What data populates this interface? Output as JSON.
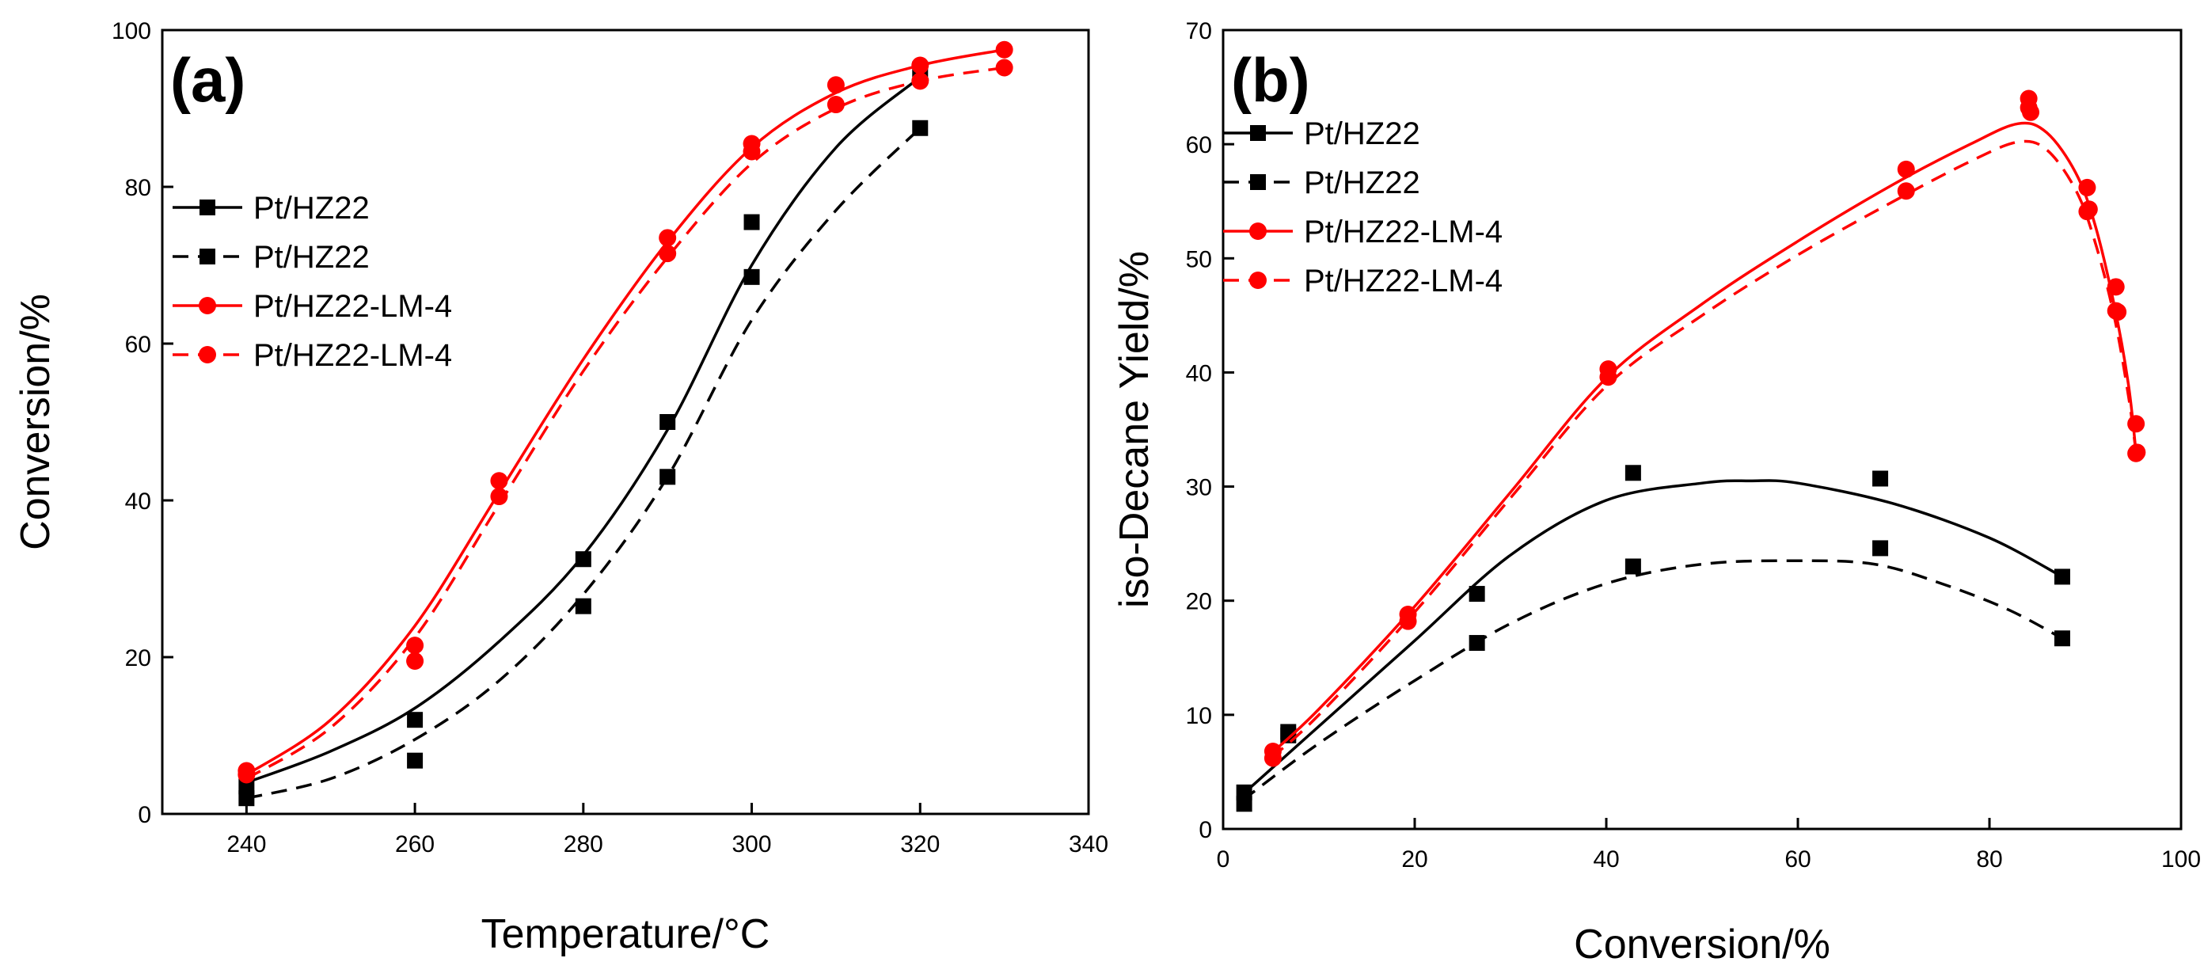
{
  "colors": {
    "black": "#000000",
    "red": "#ff0000"
  },
  "chart_data": [
    {
      "type": "line",
      "panel_label": "(a)",
      "xlabel": "Temperature/°C",
      "ylabel": "Conversion/%",
      "xlim": [
        230,
        340
      ],
      "ylim": [
        0,
        100
      ],
      "xticks": [
        240,
        260,
        280,
        300,
        320,
        340
      ],
      "yticks": [
        0,
        20,
        40,
        60,
        80,
        100
      ],
      "legend_position": "middle-left",
      "series": [
        {
          "name": "Pt/HZ22",
          "color": "#000000",
          "dash": "solid",
          "marker": "square",
          "x": [
            240,
            260,
            280,
            290,
            300,
            320
          ],
          "y": [
            3.5,
            12,
            32.5,
            50,
            75.5,
            95
          ],
          "fit": [
            [
              240,
              4
            ],
            [
              250,
              8
            ],
            [
              260,
              13.5
            ],
            [
              270,
              22
            ],
            [
              280,
              33
            ],
            [
              290,
              49
            ],
            [
              300,
              70
            ],
            [
              310,
              85
            ],
            [
              320,
              94
            ]
          ]
        },
        {
          "name": "Pt/HZ22",
          "color": "#000000",
          "dash": "dashed",
          "marker": "square",
          "x": [
            240,
            260,
            280,
            290,
            300,
            320
          ],
          "y": [
            2,
            6.8,
            26.5,
            43,
            68.5,
            87.5
          ],
          "fit": [
            [
              240,
              2
            ],
            [
              250,
              4.5
            ],
            [
              260,
              9.5
            ],
            [
              270,
              17
            ],
            [
              280,
              28
            ],
            [
              290,
              43
            ],
            [
              300,
              63
            ],
            [
              310,
              77
            ],
            [
              320,
              87.5
            ]
          ]
        },
        {
          "name": "Pt/HZ22-LM-4",
          "color": "#ff0000",
          "dash": "solid",
          "marker": "circle",
          "x": [
            240,
            260,
            270,
            290,
            300,
            310,
            320,
            330
          ],
          "y": [
            5.5,
            21.5,
            42.5,
            73.5,
            85.5,
            93,
            95.5,
            97.5
          ],
          "fit": [
            [
              240,
              5
            ],
            [
              250,
              12
            ],
            [
              260,
              24
            ],
            [
              270,
              41
            ],
            [
              280,
              58
            ],
            [
              290,
              73
            ],
            [
              300,
              85
            ],
            [
              310,
              92
            ],
            [
              320,
              95.5
            ],
            [
              330,
              97.5
            ]
          ]
        },
        {
          "name": "Pt/HZ22-LM-4",
          "color": "#ff0000",
          "dash": "dashed",
          "marker": "circle",
          "x": [
            240,
            260,
            270,
            290,
            300,
            310,
            320,
            330
          ],
          "y": [
            5,
            19.5,
            40.5,
            71.5,
            84.5,
            90.5,
            93.5,
            95.2
          ],
          "fit": [
            [
              240,
              4.5
            ],
            [
              250,
              11
            ],
            [
              260,
              22.5
            ],
            [
              270,
              39.5
            ],
            [
              280,
              56.5
            ],
            [
              290,
              71
            ],
            [
              300,
              83
            ],
            [
              310,
              90
            ],
            [
              320,
              93.5
            ],
            [
              330,
              95.2
            ]
          ]
        }
      ]
    },
    {
      "type": "line",
      "panel_label": "(b)",
      "xlabel": "Conversion/%",
      "ylabel": "iso-Decane Yield/%",
      "xlim": [
        0,
        100
      ],
      "ylim": [
        0,
        70
      ],
      "xticks": [
        0,
        20,
        40,
        60,
        80,
        100
      ],
      "yticks": [
        0,
        10,
        20,
        30,
        40,
        50,
        60,
        70
      ],
      "legend_position": "top-left",
      "series": [
        {
          "name": "Pt/HZ22",
          "color": "#000000",
          "dash": "solid",
          "marker": "square",
          "x": [
            2.2,
            6.8,
            26.5,
            42.8,
            68.6,
            87.6
          ],
          "y": [
            3.2,
            8.5,
            20.6,
            31.2,
            30.7,
            22.1
          ],
          "fit": [
            [
              2,
              3
            ],
            [
              10,
              9
            ],
            [
              20,
              16.5
            ],
            [
              30,
              24
            ],
            [
              40,
              28.8
            ],
            [
              50,
              30.3
            ],
            [
              55,
              30.5
            ],
            [
              60,
              30.3
            ],
            [
              70,
              28.5
            ],
            [
              80,
              25.5
            ],
            [
              87.6,
              22.1
            ]
          ]
        },
        {
          "name": "Pt/HZ22",
          "color": "#000000",
          "dash": "dashed",
          "marker": "square",
          "x": [
            2.2,
            6.8,
            26.5,
            42.8,
            68.6,
            87.6
          ],
          "y": [
            2.2,
            8.2,
            16.3,
            23,
            24.6,
            16.7
          ],
          "fit": [
            [
              2,
              2.5
            ],
            [
              10,
              7.5
            ],
            [
              20,
              13
            ],
            [
              30,
              18
            ],
            [
              40,
              21.5
            ],
            [
              50,
              23.2
            ],
            [
              60,
              23.5
            ],
            [
              68,
              23.2
            ],
            [
              75,
              21.5
            ],
            [
              82,
              19.2
            ],
            [
              87.6,
              16.7
            ]
          ]
        },
        {
          "name": "Pt/HZ22-LM-4",
          "color": "#ff0000",
          "dash": "solid",
          "marker": "circle",
          "x": [
            5.2,
            19.3,
            40.2,
            71.3,
            84.1,
            84.3,
            90.2,
            90.4,
            93.2,
            93.4,
            95.3,
            95.4
          ],
          "y": [
            6.8,
            18.8,
            40.3,
            57.8,
            64,
            62.8,
            56.2,
            54.3,
            47.5,
            45.3,
            35.5,
            33
          ],
          "fit": [
            [
              5,
              6.6
            ],
            [
              10,
              10.5
            ],
            [
              20,
              19.5
            ],
            [
              30,
              29.5
            ],
            [
              40,
              39.5
            ],
            [
              50,
              46
            ],
            [
              60,
              51.5
            ],
            [
              70,
              56.5
            ],
            [
              78,
              60
            ],
            [
              83,
              61.8
            ],
            [
              86,
              61
            ],
            [
              89,
              57.5
            ],
            [
              91,
              53
            ],
            [
              93,
              46
            ],
            [
              94.5,
              39
            ],
            [
              95.3,
              33
            ]
          ]
        },
        {
          "name": "Pt/HZ22-LM-4",
          "color": "#ff0000",
          "dash": "dashed",
          "marker": "circle",
          "x": [
            5.2,
            19.3,
            40.2,
            71.3,
            84.1,
            90.2,
            93.2,
            95.3
          ],
          "y": [
            6.2,
            18.2,
            39.6,
            55.9,
            63.2,
            54.1,
            45.4,
            32.9
          ],
          "fit": [
            [
              5,
              6.2
            ],
            [
              10,
              10
            ],
            [
              20,
              19
            ],
            [
              30,
              29
            ],
            [
              40,
              38.8
            ],
            [
              50,
              45
            ],
            [
              60,
              50.3
            ],
            [
              70,
              55
            ],
            [
              78,
              58.5
            ],
            [
              83,
              60.2
            ],
            [
              86,
              59.5
            ],
            [
              89,
              56
            ],
            [
              91,
              51.5
            ],
            [
              93,
              45
            ],
            [
              94.5,
              38
            ],
            [
              95.3,
              33
            ]
          ]
        }
      ]
    }
  ]
}
